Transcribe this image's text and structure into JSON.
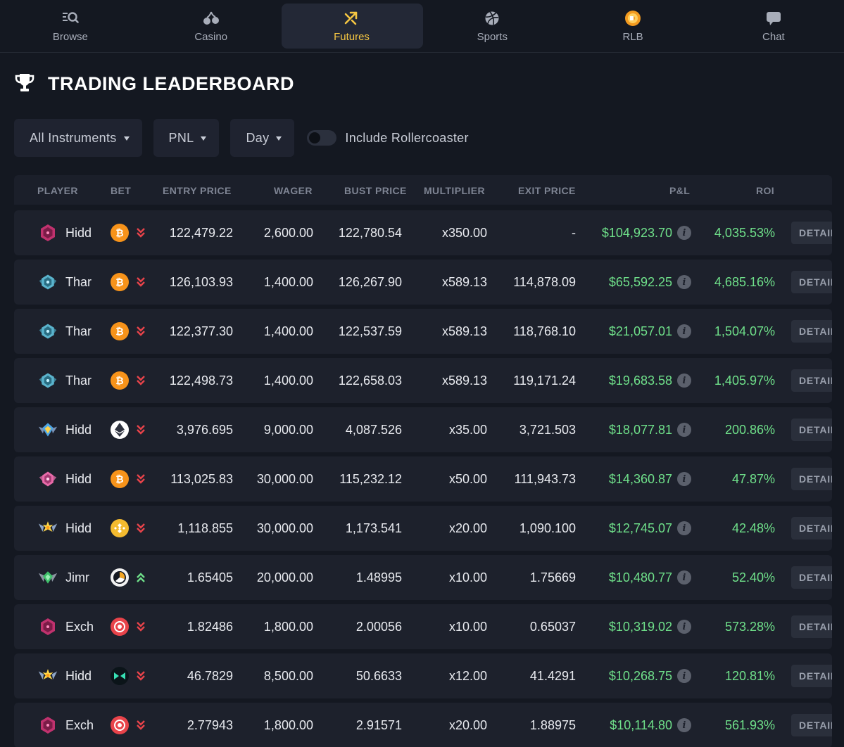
{
  "nav": {
    "tabs": [
      {
        "label": "Browse",
        "icon": "browse-icon"
      },
      {
        "label": "Casino",
        "icon": "casino-icon"
      },
      {
        "label": "Futures",
        "icon": "futures-icon",
        "active": true
      },
      {
        "label": "Sports",
        "icon": "sports-icon"
      },
      {
        "label": "RLB",
        "icon": "rlb-icon"
      },
      {
        "label": "Chat",
        "icon": "chat-icon"
      }
    ]
  },
  "page": {
    "title": "TRADING LEADERBOARD"
  },
  "filters": {
    "instruments": "All Instruments",
    "metric": "PNL",
    "period": "Day",
    "rollercoaster_label": "Include Rollercoaster"
  },
  "table": {
    "headers": {
      "player": "PLAYER",
      "bet": "BET",
      "entry": "ENTRY PRICE",
      "wager": "WAGER",
      "bust": "BUST PRICE",
      "mult": "MULTIPLIER",
      "exit": "EXIT PRICE",
      "pnl": "P&L",
      "roi": "ROI"
    },
    "detail_label": "DETAILS",
    "info_glyph": "i",
    "rows": [
      {
        "badge": "pink",
        "player": "Hidd",
        "coin": "btc",
        "dir": "down",
        "entry": "122,479.22",
        "wager": "2,600.00",
        "bust": "122,780.54",
        "mult": "x350.00",
        "exit": "-",
        "pnl": "$104,923.70",
        "roi": "4,035.53%"
      },
      {
        "badge": "teal",
        "player": "Thar",
        "coin": "btc",
        "dir": "down",
        "entry": "126,103.93",
        "wager": "1,400.00",
        "bust": "126,267.90",
        "mult": "x589.13",
        "exit": "114,878.09",
        "pnl": "$65,592.25",
        "roi": "4,685.16%"
      },
      {
        "badge": "teal",
        "player": "Thar",
        "coin": "btc",
        "dir": "down",
        "entry": "122,377.30",
        "wager": "1,400.00",
        "bust": "122,537.59",
        "mult": "x589.13",
        "exit": "118,768.10",
        "pnl": "$21,057.01",
        "roi": "1,504.07%"
      },
      {
        "badge": "teal",
        "player": "Thar",
        "coin": "btc",
        "dir": "down",
        "entry": "122,498.73",
        "wager": "1,400.00",
        "bust": "122,658.03",
        "mult": "x589.13",
        "exit": "119,171.24",
        "pnl": "$19,683.58",
        "roi": "1,405.97%"
      },
      {
        "badge": "blue",
        "player": "Hidd",
        "coin": "eth",
        "dir": "down",
        "entry": "3,976.695",
        "wager": "9,000.00",
        "bust": "4,087.526",
        "mult": "x35.00",
        "exit": "3,721.503",
        "pnl": "$18,077.81",
        "roi": "200.86%"
      },
      {
        "badge": "pinkgem",
        "player": "Hidd",
        "coin": "btc",
        "dir": "down",
        "entry": "113,025.83",
        "wager": "30,000.00",
        "bust": "115,232.12",
        "mult": "x50.00",
        "exit": "111,943.73",
        "pnl": "$14,360.87",
        "roi": "47.87%"
      },
      {
        "badge": "gold",
        "player": "Hidd",
        "coin": "bnb",
        "dir": "down",
        "entry": "1,118.855",
        "wager": "30,000.00",
        "bust": "1,173.541",
        "mult": "x20.00",
        "exit": "1,090.100",
        "pnl": "$12,745.07",
        "roi": "42.48%"
      },
      {
        "badge": "green",
        "player": "Jimr",
        "coin": "dark",
        "dir": "up",
        "entry": "1.65405",
        "wager": "20,000.00",
        "bust": "1.48995",
        "mult": "x10.00",
        "exit": "1.75669",
        "pnl": "$10,480.77",
        "roi": "52.40%"
      },
      {
        "badge": "pink",
        "player": "Exch",
        "coin": "red",
        "dir": "down",
        "entry": "1.82486",
        "wager": "1,800.00",
        "bust": "2.00056",
        "mult": "x10.00",
        "exit": "0.65037",
        "pnl": "$10,319.02",
        "roi": "573.28%"
      },
      {
        "badge": "gold",
        "player": "Hidd",
        "coin": "teal",
        "dir": "down",
        "entry": "46.7829",
        "wager": "8,500.00",
        "bust": "50.6633",
        "mult": "x12.00",
        "exit": "41.4291",
        "pnl": "$10,268.75",
        "roi": "120.81%"
      },
      {
        "badge": "pink",
        "player": "Exch",
        "coin": "red",
        "dir": "down",
        "entry": "2.77943",
        "wager": "1,800.00",
        "bust": "2.91571",
        "mult": "x20.00",
        "exit": "1.88975",
        "pnl": "$10,114.80",
        "roi": "561.93%"
      }
    ]
  },
  "colors": {
    "background": "#141821",
    "row": "#1d212c",
    "accent": "#f5c642",
    "positive": "#6fe08a",
    "short": "#e8434a",
    "long": "#6fe08a"
  }
}
